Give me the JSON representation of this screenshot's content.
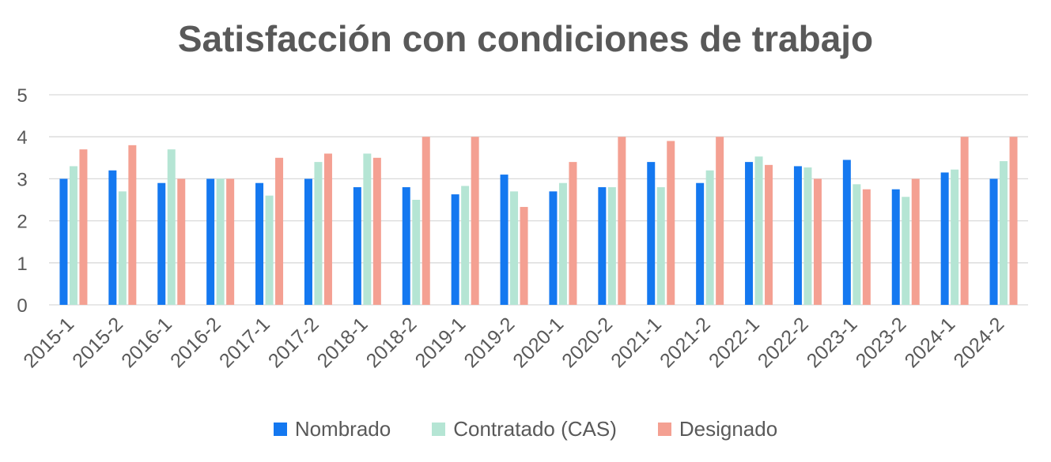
{
  "chart_data": {
    "type": "bar",
    "title": "Satisfacción con condiciones de trabajo",
    "xlabel": "",
    "ylabel": "",
    "ylim": [
      0,
      5
    ],
    "yticks": [
      "0",
      "1",
      "2",
      "3",
      "4",
      "5"
    ],
    "grid": true,
    "legend_position": "bottom",
    "categories": [
      "2015-1",
      "2015-2",
      "2016-1",
      "2016-2",
      "2017-1",
      "2017-2",
      "2018-1",
      "2018-2",
      "2019-1",
      "2019-2",
      "2020-1",
      "2020-2",
      "2021-1",
      "2021-2",
      "2022-1",
      "2022-2",
      "2023-1",
      "2023-2",
      "2024-1",
      "2024-2"
    ],
    "series": [
      {
        "name": "Nombrado",
        "color": "#1478F0",
        "values": [
          3.0,
          3.2,
          2.9,
          3.0,
          2.9,
          3.0,
          2.8,
          2.8,
          2.63,
          3.1,
          2.7,
          2.8,
          3.4,
          2.9,
          3.4,
          3.3,
          3.45,
          2.75,
          3.15,
          3.0
        ]
      },
      {
        "name": "Contratado (CAS)",
        "color": "#B5E5D4",
        "values": [
          3.3,
          2.7,
          3.7,
          3.0,
          2.6,
          3.4,
          3.6,
          2.5,
          2.83,
          2.7,
          2.9,
          2.8,
          2.8,
          3.2,
          3.53,
          3.27,
          2.87,
          2.57,
          3.22,
          3.42
        ]
      },
      {
        "name": "Designado",
        "color": "#F4A092",
        "values": [
          3.7,
          3.8,
          3.0,
          3.0,
          3.5,
          3.6,
          3.5,
          4.0,
          4.0,
          2.33,
          3.4,
          4.0,
          3.9,
          4.0,
          3.33,
          3.0,
          2.75,
          3.0,
          4.0,
          4.0
        ]
      }
    ]
  },
  "colors": {
    "grid": "#D9D9D9",
    "text": "#595959"
  }
}
